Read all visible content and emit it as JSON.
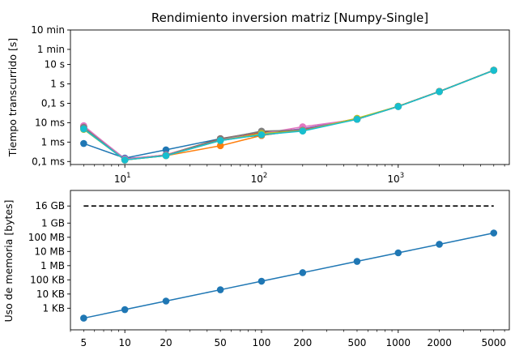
{
  "chart_data": [
    {
      "type": "line",
      "title": "Rendimiento inversion matriz [Numpy-Single]",
      "xlabel": "",
      "ylabel": "Tiempo transcurrido [s]",
      "xscale": "log",
      "yscale": "log",
      "xlim": [
        4,
        6500
      ],
      "ylim": [
        7e-05,
        600
      ],
      "x_tick_labels": [
        {
          "value": 10,
          "base": "10",
          "exp": "1"
        },
        {
          "value": 100,
          "base": "10",
          "exp": "2"
        },
        {
          "value": 1000,
          "base": "10",
          "exp": "3"
        }
      ],
      "y_tick_labels": [
        {
          "value": 0.0001,
          "label": "0,1 ms"
        },
        {
          "value": 0.001,
          "label": "1 ms"
        },
        {
          "value": 0.01,
          "label": "10 ms"
        },
        {
          "value": 0.1,
          "label": "0,1 s"
        },
        {
          "value": 1,
          "label": "1 s"
        },
        {
          "value": 10,
          "label": "10 s"
        },
        {
          "value": 60,
          "label": "1 min"
        },
        {
          "value": 600,
          "label": "10 min"
        }
      ],
      "grid": false,
      "legend": "none",
      "series": [
        {
          "color": "#1f77b4",
          "x": [
            5,
            10,
            20,
            50,
            100,
            200,
            500,
            1000,
            2000,
            5000
          ],
          "y": [
            0.00085,
            0.00015,
            0.0004,
            0.0015,
            0.0022,
            0.0042,
            0.015,
            0.068,
            0.4,
            5.0
          ]
        },
        {
          "color": "#ff7f0e",
          "x": [
            5,
            10,
            20,
            50,
            100,
            200,
            500,
            1000,
            2000,
            5000
          ],
          "y": [
            0.005,
            0.00012,
            0.0002,
            0.00065,
            0.0022,
            0.0045,
            0.016,
            0.07,
            0.41,
            5.1
          ]
        },
        {
          "color": "#2ca02c",
          "x": [
            5,
            10,
            20,
            50,
            100,
            200,
            500,
            1000,
            2000,
            5000
          ],
          "y": [
            0.0055,
            0.00013,
            0.00021,
            0.0012,
            0.0025,
            0.004,
            0.015,
            0.069,
            0.4,
            5.0
          ]
        },
        {
          "color": "#d62728",
          "x": [
            5,
            10,
            20,
            50,
            100,
            200,
            500,
            1000,
            2000,
            5000
          ],
          "y": [
            0.006,
            0.00012,
            0.00022,
            0.0013,
            0.003,
            0.0048,
            0.016,
            0.07,
            0.41,
            5.0
          ]
        },
        {
          "color": "#9467bd",
          "x": [
            5,
            10,
            20,
            50,
            100,
            200,
            500,
            1000,
            2000,
            5000
          ],
          "y": [
            0.0065,
            0.00014,
            0.00021,
            0.0014,
            0.0026,
            0.005,
            0.015,
            0.069,
            0.4,
            5.1
          ]
        },
        {
          "color": "#8c564b",
          "x": [
            5,
            10,
            20,
            50,
            100,
            200,
            500,
            1000,
            2000,
            5000
          ],
          "y": [
            0.0062,
            0.00013,
            0.00022,
            0.0015,
            0.0035,
            0.0038,
            0.016,
            0.07,
            0.41,
            5.0
          ]
        },
        {
          "color": "#e377c2",
          "x": [
            5,
            10,
            20,
            50,
            100,
            200,
            500,
            1000,
            2000,
            5000
          ],
          "y": [
            0.007,
            0.00013,
            0.00022,
            0.0013,
            0.0027,
            0.0062,
            0.015,
            0.07,
            0.4,
            5.0
          ]
        },
        {
          "color": "#7f7f7f",
          "x": [
            5,
            10,
            20,
            50,
            100,
            200,
            500,
            1000,
            2000,
            5000
          ],
          "y": [
            0.0058,
            0.00012,
            0.00021,
            0.0014,
            0.0037,
            0.0041,
            0.015,
            0.069,
            0.41,
            5.1
          ]
        },
        {
          "color": "#bcbd22",
          "x": [
            5,
            10,
            20,
            50,
            100,
            200,
            500,
            1000,
            2000,
            5000
          ],
          "y": [
            0.0045,
            0.00012,
            0.0002,
            0.0012,
            0.0028,
            0.0038,
            0.017,
            0.07,
            0.4,
            5.0
          ]
        },
        {
          "color": "#17becf",
          "x": [
            5,
            10,
            20,
            50,
            100,
            200,
            500,
            1000,
            2000,
            5000
          ],
          "y": [
            0.0048,
            0.00012,
            0.0002,
            0.0012,
            0.0024,
            0.0037,
            0.015,
            0.068,
            0.4,
            5.0
          ]
        }
      ]
    },
    {
      "type": "line",
      "title": "",
      "xlabel": "",
      "ylabel": "Uso de memoria [bytes]",
      "xscale": "log",
      "yscale": "log",
      "xlim": [
        4,
        6500
      ],
      "ylim": [
        30,
        200000000000
      ],
      "x_tick_labels": [
        {
          "value": 5,
          "label": "5"
        },
        {
          "value": 10,
          "label": "10"
        },
        {
          "value": 20,
          "label": "20"
        },
        {
          "value": 50,
          "label": "50"
        },
        {
          "value": 100,
          "label": "100"
        },
        {
          "value": 200,
          "label": "200"
        },
        {
          "value": 500,
          "label": "500"
        },
        {
          "value": 1000,
          "label": "1000"
        },
        {
          "value": 2000,
          "label": "2000"
        },
        {
          "value": 5000,
          "label": "5000"
        }
      ],
      "y_tick_labels": [
        {
          "value": 1000,
          "label": "1 KB"
        },
        {
          "value": 10000,
          "label": "10 KB"
        },
        {
          "value": 100000,
          "label": "100 KB"
        },
        {
          "value": 1000000,
          "label": "1 MB"
        },
        {
          "value": 10000000,
          "label": "10 MB"
        },
        {
          "value": 100000000,
          "label": "100 MB"
        },
        {
          "value": 1000000000,
          "label": "1 GB"
        },
        {
          "value": 16000000000,
          "label": "16 GB"
        }
      ],
      "grid": false,
      "legend": "none",
      "series": [
        {
          "color": "#1f77b4",
          "x": [
            5,
            10,
            20,
            50,
            100,
            200,
            500,
            1000,
            2000,
            5000
          ],
          "y": [
            200,
            800,
            3200,
            20000,
            80000,
            320000,
            2000000,
            8000000,
            32000000,
            200000000
          ]
        }
      ],
      "reference_line": {
        "color": "#000000",
        "style": "dashed",
        "y": 16000000000,
        "x": [
          5,
          5000
        ]
      }
    }
  ]
}
